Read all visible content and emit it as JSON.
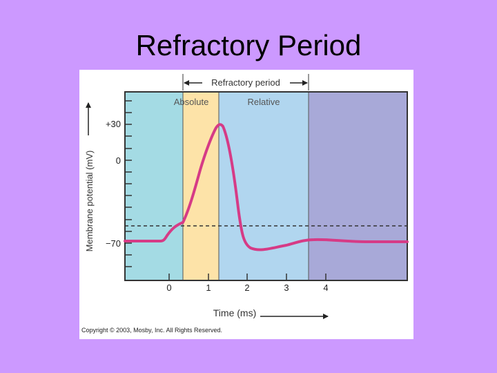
{
  "slide": {
    "title": "Refractory Period"
  },
  "figure": {
    "top_label": "Refractory period",
    "zones": {
      "absolute": "Absolute",
      "relative": "Relative"
    },
    "ylabel": "Membrane potential (mV)",
    "xlabel": "Time (ms)",
    "y_ticks": [
      "+30",
      "0",
      "−70"
    ],
    "x_ticks": [
      "0",
      "1",
      "2",
      "3",
      "4"
    ],
    "copyright": "Copyright © 2003, Mosby, Inc. All Rights Reserved."
  },
  "colors": {
    "background": "#cc99ff",
    "resting_zone": "#a4dbe4",
    "absolute_zone": "#fde3a8",
    "relative_zone": "#b1d6ef",
    "late_zone": "#a8a9d8",
    "trace": "#d63b86",
    "threshold": "#333333"
  }
}
